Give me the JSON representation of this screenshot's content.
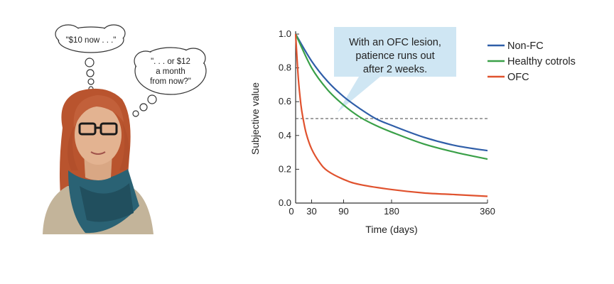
{
  "thoughts": {
    "first": "\"$10 now . . .\"",
    "second_lines": [
      "\". . . or $12",
      "a month",
      "from now?\""
    ]
  },
  "callout_lines": [
    "With an OFC lesion,",
    "patience runs out",
    "after 2 weeks."
  ],
  "chart_data": {
    "type": "line",
    "title": "",
    "xlabel": "Time (days)",
    "ylabel": "Subjective value",
    "xlim": [
      0,
      360
    ],
    "ylim": [
      0,
      1
    ],
    "xticks": [
      0,
      30,
      90,
      180,
      360
    ],
    "yticks": [
      "0.0",
      "0.2",
      "0.4",
      "0.6",
      "0.8",
      "1.0"
    ],
    "grid": false,
    "legend_position": "top-right",
    "reference_line": {
      "y": 0.5,
      "style": "dashed"
    },
    "series": [
      {
        "name": "Non-FC",
        "color": "#2f5ea8",
        "x": [
          0,
          30,
          60,
          90,
          120,
          150,
          180,
          240,
          300,
          360
        ],
        "y": [
          1.0,
          0.84,
          0.72,
          0.63,
          0.56,
          0.5,
          0.46,
          0.39,
          0.34,
          0.31
        ]
      },
      {
        "name": "Healthy cotrols",
        "color": "#3aa048",
        "x": [
          0,
          30,
          60,
          90,
          120,
          150,
          180,
          240,
          300,
          360
        ],
        "y": [
          1.0,
          0.8,
          0.67,
          0.58,
          0.51,
          0.46,
          0.42,
          0.35,
          0.3,
          0.26
        ]
      },
      {
        "name": "OFC",
        "color": "#e0522e",
        "x": [
          0,
          5,
          10,
          14,
          20,
          30,
          45,
          60,
          90,
          120,
          180,
          240,
          300,
          360
        ],
        "y": [
          1.0,
          0.74,
          0.58,
          0.5,
          0.41,
          0.32,
          0.24,
          0.19,
          0.14,
          0.11,
          0.08,
          0.06,
          0.05,
          0.04
        ]
      }
    ]
  }
}
